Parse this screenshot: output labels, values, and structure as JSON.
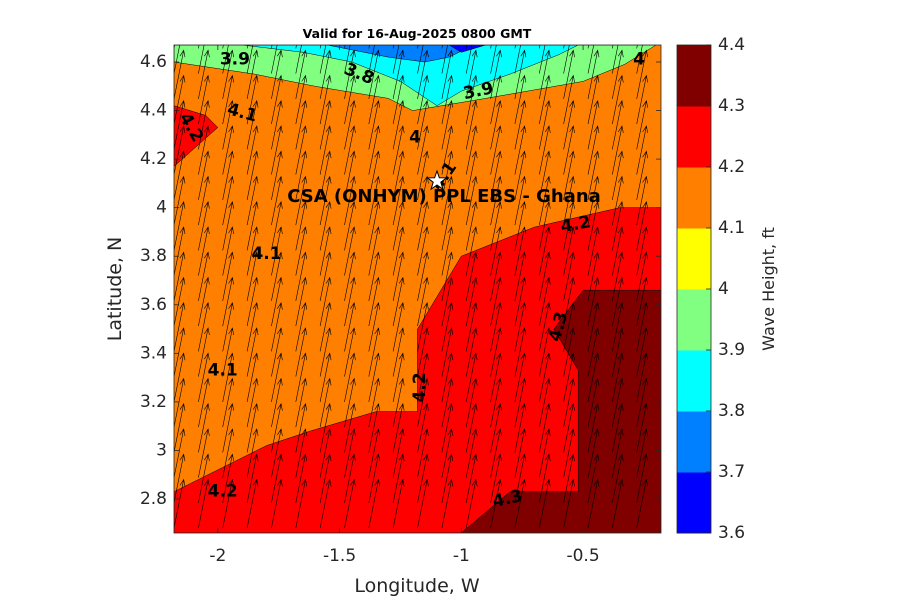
{
  "chart_data": {
    "type": "heatmap",
    "title": "Valid for 16-Aug-2025 0800 GMT",
    "xlabel": "Longitude, W",
    "ylabel": "Latitude, N",
    "colorbar_label": "Wave Height, ft",
    "xlim": [
      -2.18,
      -0.18
    ],
    "ylim": [
      2.66,
      4.67
    ],
    "xticks": [
      -2,
      -1.5,
      -1,
      -0.5
    ],
    "xtick_labels": [
      "-2",
      "-1.5",
      "-1",
      "-0.5"
    ],
    "yticks": [
      2.8,
      3,
      3.2,
      3.4,
      3.6,
      3.8,
      4,
      4.2,
      4.4,
      4.6
    ],
    "ytick_labels": [
      "2.8",
      "3",
      "3.2",
      "3.4",
      "3.6",
      "3.8",
      "4",
      "4.2",
      "4.4",
      "4.6"
    ],
    "levels": [
      3.6,
      3.7,
      3.8,
      3.9,
      4,
      4.1,
      4.2,
      4.3,
      4.4
    ],
    "level_labels": [
      "3.6",
      "3.7",
      "3.8",
      "3.9",
      "4",
      "4.1",
      "4.2",
      "4.3",
      "4.4"
    ],
    "level_colors": [
      "#0000ff",
      "#0080ff",
      "#00ffff",
      "#80ff80",
      "#ffff00",
      "#ff8000",
      "#ff0000",
      "#800000"
    ],
    "regions": [
      {
        "level": "4.3-4.4",
        "color": "#800000",
        "polygon": [
          [
            -0.18,
            2.66
          ],
          [
            -0.18,
            3.66
          ],
          [
            -0.5,
            3.66
          ],
          [
            -0.62,
            3.5
          ],
          [
            -0.52,
            3.33
          ],
          [
            -0.52,
            2.83
          ],
          [
            -0.8,
            2.83
          ],
          [
            -1.0,
            2.66
          ]
        ]
      },
      {
        "level": "4.2-4.3",
        "color": "#ff0000",
        "polygon": [
          [
            -2.18,
            2.66
          ],
          [
            -1.0,
            2.66
          ],
          [
            -0.8,
            2.83
          ],
          [
            -0.52,
            2.83
          ],
          [
            -0.52,
            3.33
          ],
          [
            -0.62,
            3.5
          ],
          [
            -0.5,
            3.66
          ],
          [
            -0.18,
            3.66
          ],
          [
            -0.18,
            4.0
          ],
          [
            -0.35,
            4.0
          ],
          [
            -0.7,
            3.92
          ],
          [
            -1.0,
            3.8
          ],
          [
            -1.18,
            3.5
          ],
          [
            -1.18,
            3.16
          ],
          [
            -1.35,
            3.16
          ],
          [
            -1.62,
            3.08
          ],
          [
            -1.8,
            3.02
          ],
          [
            -2.18,
            2.83
          ]
        ]
      },
      {
        "level": "4.2-4.3",
        "color": "#ff0000",
        "polygon": [
          [
            -2.18,
            4.17
          ],
          [
            -2.18,
            4.42
          ],
          [
            -2.05,
            4.38
          ],
          [
            -2.0,
            4.33
          ]
        ]
      },
      {
        "level": "3.9-4.0",
        "color": "#80ff80",
        "polygon": [
          [
            -2.18,
            4.6
          ],
          [
            -1.85,
            4.55
          ],
          [
            -1.6,
            4.5
          ],
          [
            -1.3,
            4.45
          ],
          [
            -1.2,
            4.4
          ],
          [
            -0.9,
            4.45
          ],
          [
            -0.5,
            4.52
          ],
          [
            -0.33,
            4.59
          ],
          [
            -0.2,
            4.67
          ],
          [
            -0.95,
            4.67
          ],
          [
            -1.05,
            4.62
          ],
          [
            -1.15,
            4.6
          ],
          [
            -1.3,
            4.62
          ],
          [
            -1.55,
            4.67
          ],
          [
            -2.18,
            4.67
          ]
        ]
      },
      {
        "level": "3.8-3.9",
        "color": "#00ffff",
        "polygon": [
          [
            -1.9,
            4.67
          ],
          [
            -1.65,
            4.64
          ],
          [
            -1.45,
            4.6
          ],
          [
            -1.25,
            4.52
          ],
          [
            -1.1,
            4.42
          ],
          [
            -1.0,
            4.48
          ],
          [
            -0.8,
            4.55
          ],
          [
            -0.6,
            4.63
          ],
          [
            -0.52,
            4.67
          ]
        ]
      },
      {
        "level": "3.7-3.8",
        "color": "#0080ff",
        "polygon": [
          [
            -1.55,
            4.67
          ],
          [
            -1.3,
            4.62
          ],
          [
            -1.15,
            4.6
          ],
          [
            -1.05,
            4.62
          ],
          [
            -0.95,
            4.67
          ]
        ]
      },
      {
        "level": "3.6-3.7",
        "color": "#0000ff",
        "polygon": [
          [
            -1.05,
            4.67
          ],
          [
            -1.0,
            4.64
          ],
          [
            -0.9,
            4.67
          ]
        ]
      }
    ],
    "contour_labels": [
      {
        "text": "3.9",
        "x": -1.93,
        "y": 4.61,
        "rot": 0
      },
      {
        "text": "3.8",
        "x": -1.42,
        "y": 4.55,
        "rot": 22
      },
      {
        "text": "3.9",
        "x": -0.93,
        "y": 4.48,
        "rot": -12
      },
      {
        "text": "4",
        "x": -0.27,
        "y": 4.61,
        "rot": 0
      },
      {
        "text": "4.1",
        "x": -1.9,
        "y": 4.39,
        "rot": 15
      },
      {
        "text": "4.2",
        "x": -2.11,
        "y": 4.33,
        "rot": 60
      },
      {
        "text": "4",
        "x": -1.19,
        "y": 4.29,
        "rot": 0
      },
      {
        "text": "4.1",
        "x": -1.07,
        "y": 4.13,
        "rot": -55
      },
      {
        "text": "4.2",
        "x": -0.53,
        "y": 3.93,
        "rot": -10
      },
      {
        "text": "4.1",
        "x": -1.8,
        "y": 3.81,
        "rot": 0
      },
      {
        "text": "4.3",
        "x": -0.6,
        "y": 3.51,
        "rot": -75
      },
      {
        "text": "4.1",
        "x": -1.98,
        "y": 3.33,
        "rot": 0
      },
      {
        "text": "4.2",
        "x": -1.17,
        "y": 3.26,
        "rot": -90
      },
      {
        "text": "4.2",
        "x": -1.98,
        "y": 2.83,
        "rot": 0
      },
      {
        "text": "4.3",
        "x": -0.81,
        "y": 2.8,
        "rot": -12
      }
    ],
    "wind_arrows": {
      "lon_start": -2.18,
      "lon_step": 0.1,
      "lon_count": 20,
      "lat_start": 2.68,
      "lat_step": 0.104,
      "lat_count": 20,
      "dx": 0.04,
      "dy": 0.2
    },
    "site": {
      "name": "CSA (ONHYM) PPL EBS  - Ghana",
      "x": -1.1,
      "y": 4.11,
      "marker": "star"
    }
  }
}
